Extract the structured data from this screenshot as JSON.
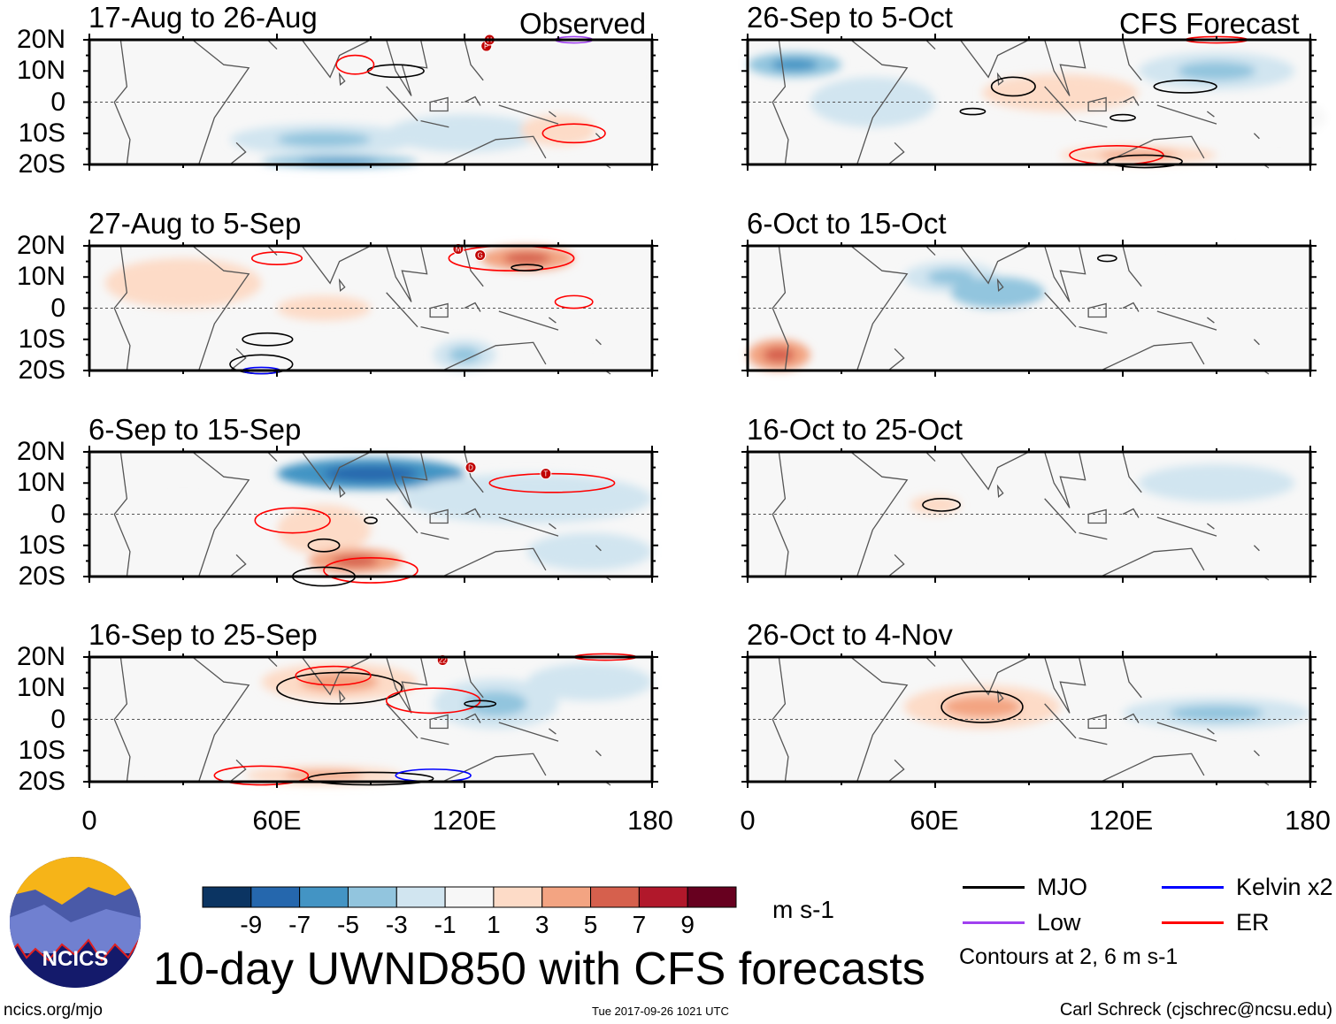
{
  "header": {
    "left_label": "Observed",
    "right_label": "CFS Forecast"
  },
  "chart_data": [
    {
      "type": "heatmap",
      "column": "Observed",
      "title": "17-Aug to 26-Aug",
      "anom": [
        [
          75,
          -12,
          30,
          5,
          -4
        ],
        [
          120,
          -10,
          25,
          6,
          -3
        ],
        [
          80,
          -19,
          25,
          2,
          -6
        ],
        [
          150,
          -9,
          12,
          5,
          3
        ],
        [
          115,
          3,
          12,
          4,
          2
        ],
        [
          60,
          10,
          40,
          4,
          -2
        ],
        [
          150,
          8,
          25,
          5,
          -2
        ]
      ],
      "contours": [
        [
          "MJO",
          98,
          10,
          9,
          2
        ],
        [
          "ER",
          85,
          12,
          6,
          3
        ],
        [
          "ER",
          155,
          -10,
          10,
          3
        ],
        [
          "Low",
          155,
          20,
          6,
          1
        ]
      ],
      "storms": [
        [
          127,
          18,
          "P"
        ],
        [
          128,
          20,
          "H"
        ]
      ]
    },
    {
      "type": "heatmap",
      "column": "Observed",
      "title": "27-Aug to 5-Sep",
      "anom": [
        [
          30,
          8,
          25,
          8,
          3
        ],
        [
          75,
          0,
          15,
          4,
          3
        ],
        [
          140,
          16,
          15,
          4,
          6
        ],
        [
          120,
          -15,
          10,
          5,
          -4
        ],
        [
          100,
          10,
          20,
          5,
          -2
        ],
        [
          160,
          -5,
          20,
          6,
          -2
        ]
      ],
      "contours": [
        [
          "ER",
          60,
          16,
          8,
          2
        ],
        [
          "ER",
          135,
          16,
          20,
          4
        ],
        [
          "ER",
          155,
          2,
          6,
          2
        ],
        [
          "MJO",
          57,
          -10,
          8,
          2
        ],
        [
          "MJO",
          55,
          -18,
          10,
          3
        ],
        [
          "Kelvin",
          55,
          -20,
          6,
          1
        ],
        [
          "MJO",
          140,
          13,
          5,
          1
        ]
      ],
      "storms": [
        [
          118,
          19,
          "M"
        ],
        [
          125,
          17,
          "G"
        ]
      ]
    },
    {
      "type": "heatmap",
      "column": "Observed",
      "title": "6-Sep to 15-Sep",
      "anom": [
        [
          90,
          13,
          30,
          5,
          -8
        ],
        [
          75,
          -5,
          15,
          8,
          3
        ],
        [
          85,
          -15,
          15,
          4,
          5
        ],
        [
          140,
          5,
          40,
          8,
          -3
        ],
        [
          30,
          -5,
          30,
          10,
          2
        ],
        [
          160,
          -12,
          20,
          6,
          -3
        ]
      ],
      "contours": [
        [
          "ER",
          65,
          -2,
          12,
          4
        ],
        [
          "ER",
          90,
          -18,
          15,
          4
        ],
        [
          "ER",
          148,
          10,
          20,
          3
        ],
        [
          "MJO",
          75,
          -10,
          5,
          2
        ],
        [
          "MJO",
          75,
          -20,
          10,
          3
        ],
        [
          "MJO",
          90,
          -2,
          2,
          1
        ]
      ],
      "storms": [
        [
          122,
          15,
          "D"
        ],
        [
          146,
          13,
          "T"
        ]
      ]
    },
    {
      "type": "heatmap",
      "column": "Observed",
      "title": "16-Sep to 25-Sep",
      "anom": [
        [
          80,
          12,
          25,
          6,
          4
        ],
        [
          130,
          5,
          20,
          8,
          -4
        ],
        [
          160,
          12,
          20,
          6,
          -3
        ],
        [
          75,
          -18,
          25,
          3,
          4
        ],
        [
          20,
          -10,
          15,
          5,
          2
        ]
      ],
      "contours": [
        [
          "MJO",
          80,
          10,
          20,
          5
        ],
        [
          "ER",
          78,
          14,
          12,
          3
        ],
        [
          "ER",
          110,
          6,
          15,
          4
        ],
        [
          "ER",
          55,
          -18,
          15,
          3
        ],
        [
          "MJO",
          90,
          -19,
          20,
          2
        ],
        [
          "Kelvin",
          110,
          -18,
          12,
          2
        ],
        [
          "MJO",
          125,
          5,
          5,
          1
        ],
        [
          "ER",
          165,
          20,
          10,
          1
        ]
      ],
      "storms": [
        [
          113,
          19,
          "22"
        ]
      ]
    },
    {
      "type": "heatmap",
      "column": "CFS Forecast",
      "title": "26-Sep to 5-Oct",
      "anom": [
        [
          15,
          12,
          15,
          4,
          -6
        ],
        [
          100,
          3,
          25,
          6,
          3
        ],
        [
          150,
          10,
          25,
          6,
          -4
        ],
        [
          40,
          0,
          20,
          8,
          -3
        ],
        [
          125,
          -17,
          25,
          3,
          4
        ],
        [
          170,
          -5,
          15,
          6,
          -2
        ]
      ],
      "contours": [
        [
          "MJO",
          85,
          5,
          7,
          3
        ],
        [
          "MJO",
          72,
          -3,
          4,
          1
        ],
        [
          "MJO",
          140,
          5,
          10,
          2
        ],
        [
          "MJO",
          120,
          -5,
          4,
          1
        ],
        [
          "ER",
          118,
          -17,
          15,
          3
        ],
        [
          "MJO",
          127,
          -19,
          12,
          2
        ],
        [
          "ER",
          150,
          20,
          10,
          1
        ]
      ],
      "storms": []
    },
    {
      "type": "heatmap",
      "column": "CFS Forecast",
      "title": "6-Oct to 15-Oct",
      "anom": [
        [
          65,
          10,
          15,
          5,
          -4
        ],
        [
          80,
          5,
          15,
          5,
          -5
        ],
        [
          140,
          8,
          25,
          6,
          -2
        ],
        [
          10,
          -15,
          10,
          5,
          5
        ],
        [
          100,
          -3,
          20,
          4,
          2
        ],
        [
          160,
          15,
          20,
          4,
          2
        ]
      ],
      "contours": [
        [
          "MJO",
          115,
          16,
          3,
          1
        ]
      ],
      "storms": []
    },
    {
      "type": "heatmap",
      "column": "CFS Forecast",
      "title": "16-Oct to 25-Oct",
      "anom": [
        [
          60,
          3,
          8,
          3,
          3
        ],
        [
          150,
          10,
          25,
          6,
          -3
        ],
        [
          90,
          -8,
          40,
          5,
          -1
        ],
        [
          10,
          2,
          6,
          4,
          2
        ]
      ],
      "contours": [
        [
          "MJO",
          62,
          3,
          6,
          2
        ]
      ],
      "storms": []
    },
    {
      "type": "heatmap",
      "column": "CFS Forecast",
      "title": "26-Oct to 4-Nov",
      "anom": [
        [
          75,
          4,
          25,
          7,
          4
        ],
        [
          150,
          2,
          30,
          5,
          -4
        ],
        [
          160,
          15,
          15,
          4,
          2
        ],
        [
          30,
          -10,
          20,
          5,
          -1
        ]
      ],
      "contours": [
        [
          "MJO",
          75,
          4,
          13,
          5
        ]
      ],
      "storms": []
    }
  ],
  "axes": {
    "y_ticks": [
      "20N",
      "10N",
      "0",
      "10S",
      "20S"
    ],
    "x_ticks": [
      "0",
      "60E",
      "120E",
      "180"
    ],
    "lon_range": [
      0,
      180
    ],
    "lat_range": [
      -20,
      20
    ]
  },
  "colorbar": {
    "labels": [
      "-9",
      "-7",
      "-5",
      "-3",
      "-1",
      "1",
      "3",
      "5",
      "7",
      "9"
    ],
    "units": "m s-1",
    "colors": [
      "#0b3462",
      "#2567ad",
      "#4394c4",
      "#92c5de",
      "#d1e5f0",
      "#f7f7f7",
      "#fddbc7",
      "#f3a482",
      "#d6604d",
      "#b1182b",
      "#67001f"
    ]
  },
  "legend": {
    "items": [
      {
        "label": "MJO",
        "color": "#000000"
      },
      {
        "label": "Kelvin x2",
        "color": "#0000ff"
      },
      {
        "label": "Low",
        "color": "#a040f0"
      },
      {
        "label": "ER",
        "color": "#ff0000"
      }
    ],
    "note": "Contours at 2, 6 m s-1"
  },
  "footer": {
    "title": "10-day UWND850 with CFS forecasts",
    "logo_text": "NCICS",
    "url": "ncics.org/mjo",
    "timestamp": "Tue 2017-09-26 1021 UTC",
    "author": "Carl Schreck (cjschrec@ncsu.edu)"
  }
}
